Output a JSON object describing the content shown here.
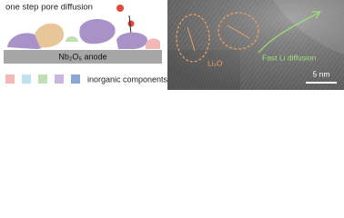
{
  "left": {
    "title": "one step pore diffusion",
    "anode_label": "Nb₂O₅ anode",
    "legend_label": "inorganic components"
  },
  "right": {
    "annotation_li2o": "Li₂O",
    "annotation_fast": "Fast Li diffusion",
    "scale_bar": "5 nm"
  }
}
